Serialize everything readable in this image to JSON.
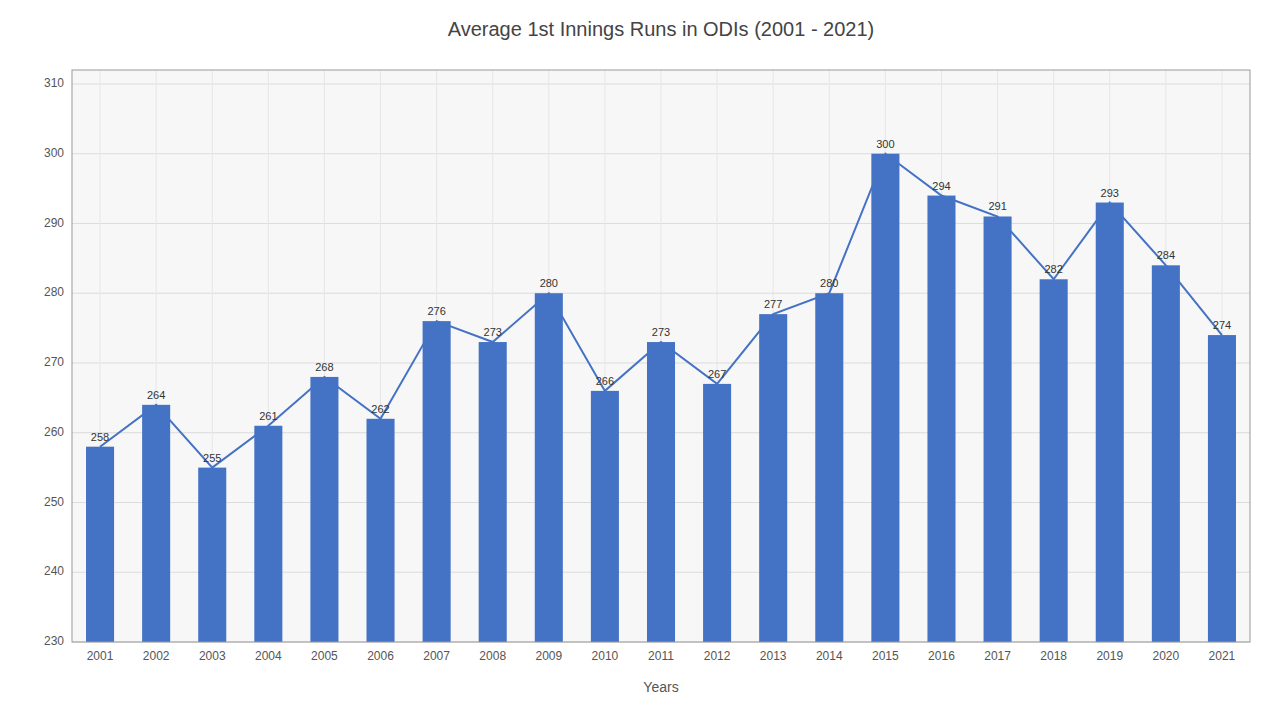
{
  "chart_data": {
    "type": "bar",
    "title": "Average 1st Innings Runs in ODIs (2001 - 2021)",
    "x_label": "Years",
    "categories": [
      "2001",
      "2002",
      "2003",
      "2004",
      "2005",
      "2006",
      "2007",
      "2008",
      "2009",
      "2010",
      "2011",
      "2012",
      "2013",
      "2014",
      "2015",
      "2016",
      "2017",
      "2018",
      "2019",
      "2020",
      "2021"
    ],
    "series": [
      {
        "type": "bar",
        "color": "#4472C4",
        "values": [
          258,
          264,
          255,
          261,
          268,
          262,
          276,
          273,
          280,
          266,
          273,
          267,
          277,
          280,
          300,
          294,
          291,
          282,
          293,
          284,
          274
        ]
      },
      {
        "type": "line",
        "color": "#4472C4",
        "values": [
          258,
          264,
          255,
          261,
          268,
          262,
          276,
          273,
          280,
          266,
          273,
          267,
          277,
          280,
          300,
          294,
          291,
          282,
          293,
          284,
          274
        ]
      }
    ],
    "ylim": [
      230,
      312
    ],
    "yticks": [
      230,
      240,
      250,
      260,
      270,
      280,
      290,
      300,
      310
    ],
    "grid": true,
    "data_labels": true
  }
}
